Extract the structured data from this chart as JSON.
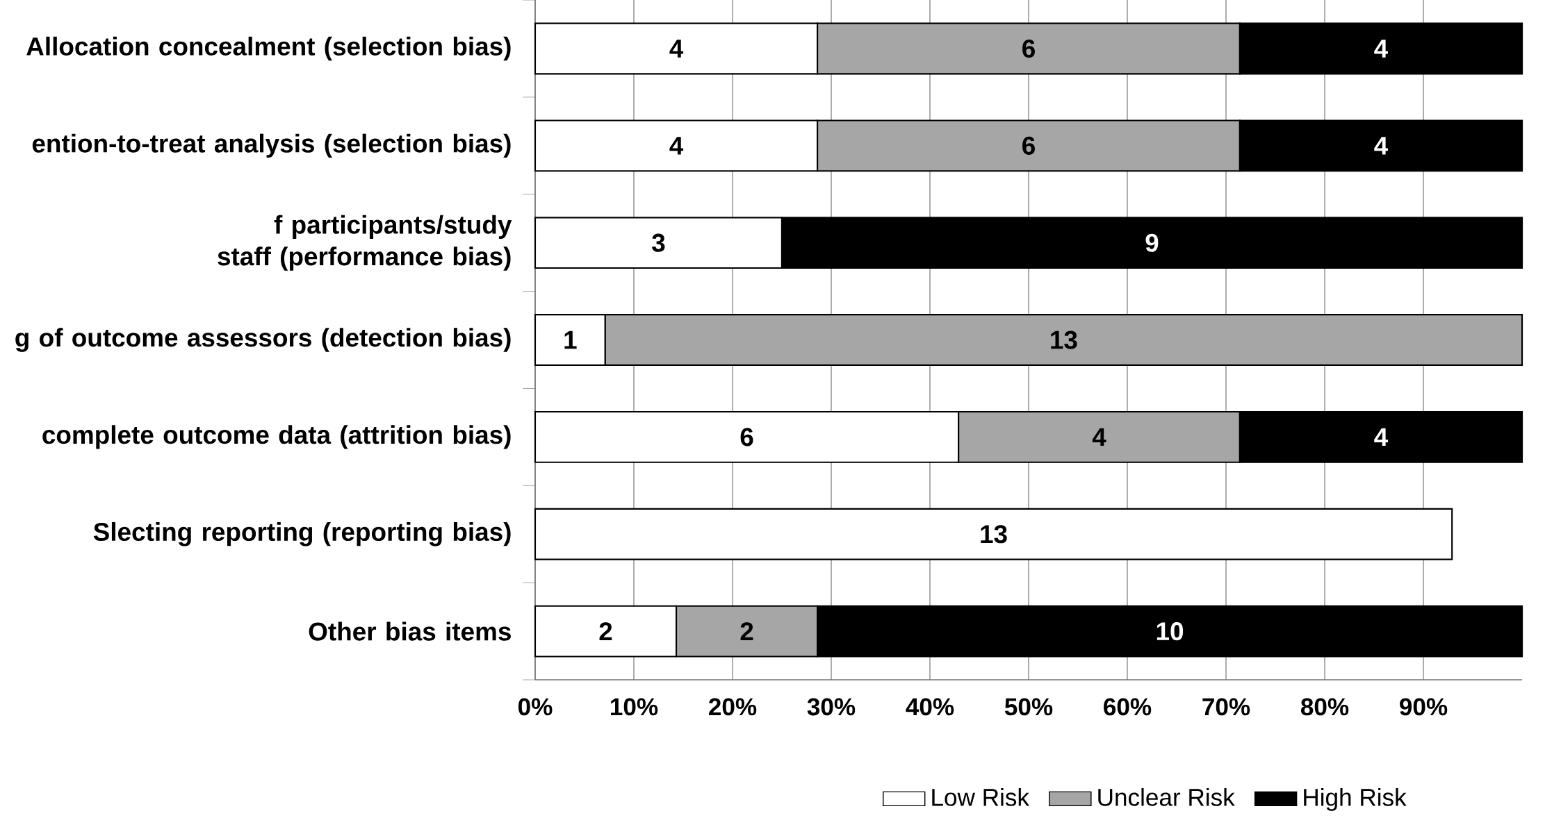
{
  "chart_data": {
    "type": "bar",
    "orientation": "horizontal",
    "stacked": true,
    "categories": [
      "Allocation concealment (selection bias)",
      "ention-to-treat analysis (selection bias)",
      "f participants/study staff (performance bias)",
      "g of outcome assessors (detection bias)",
      "complete outcome data (attrition bias)",
      "Slecting reporting (reporting bias)",
      "Other bias items"
    ],
    "series": [
      {
        "name": "Low Risk",
        "color": "#ffffff",
        "values": [
          28.6,
          28.6,
          25,
          7.1,
          42.9,
          92.9,
          14.3
        ]
      },
      {
        "name": "Unclear Risk",
        "color": "#a6a6a6",
        "values": [
          42.8,
          42.8,
          0,
          92.9,
          28.5,
          null,
          14.3
        ]
      },
      {
        "name": "High Risk",
        "color": "#000000",
        "values": [
          28.6,
          28.6,
          75,
          null,
          28.6,
          null,
          71.4
        ]
      }
    ],
    "annotations": [
      "4",
      "6",
      "4",
      "4",
      "6",
      "4",
      "3",
      "9",
      "1",
      "13",
      "6",
      "4",
      "4",
      "13",
      "2",
      "2",
      "10"
    ],
    "xlim": [
      0,
      100
    ],
    "xticks": [
      {
        "value": 0,
        "label": "0%"
      },
      {
        "value": 10,
        "label": "10%"
      },
      {
        "value": 20,
        "label": "20%"
      },
      {
        "value": 30,
        "label": "30%"
      },
      {
        "value": 40,
        "label": "40%"
      },
      {
        "value": 50,
        "label": "50%"
      },
      {
        "value": 60,
        "label": "60%"
      },
      {
        "value": 70,
        "label": "70%"
      },
      {
        "value": 80,
        "label": "80%"
      },
      {
        "value": 90,
        "label": "90%"
      }
    ],
    "grid": "x",
    "legend": "bottom"
  }
}
